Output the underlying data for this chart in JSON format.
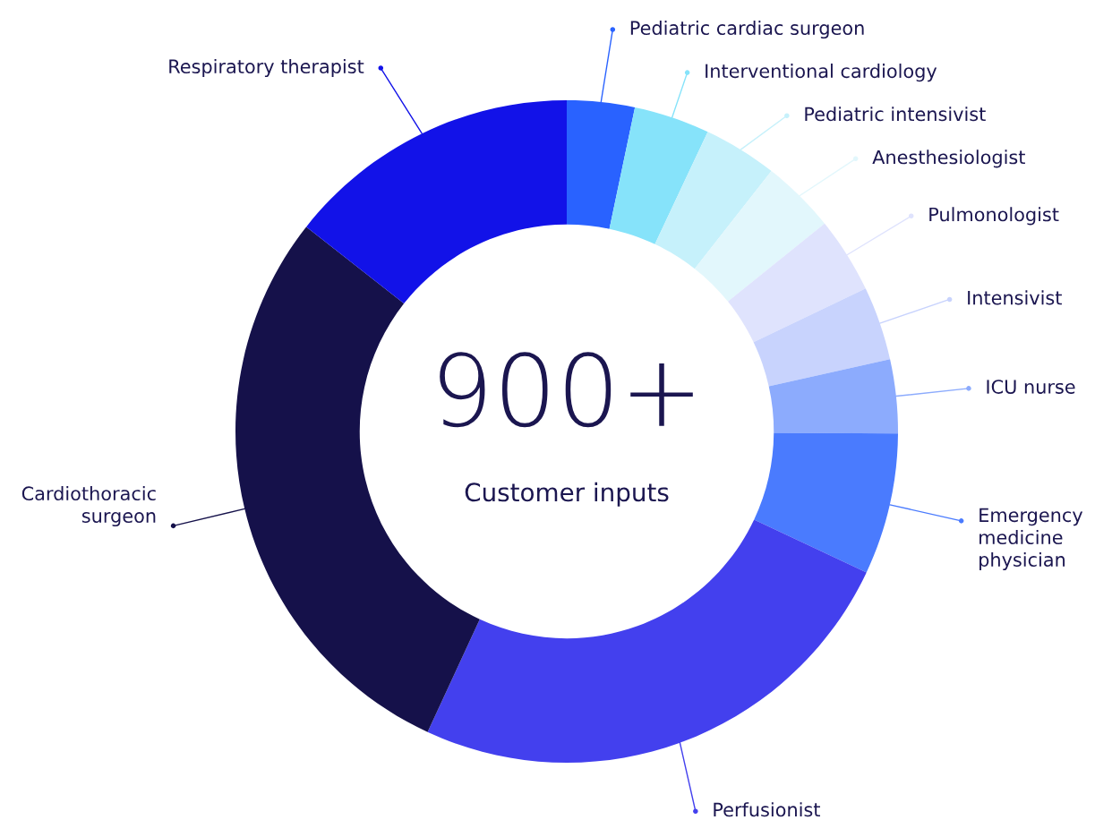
{
  "chart_data": {
    "type": "donut",
    "categories": [
      "Pediatric cardiac surgeon",
      "Interventional cardiology",
      "Pediatric intensivist",
      "Anesthesiologist",
      "Pulmonologist",
      "Intensivist",
      "ICU nurse",
      "Emergency\nmedicine\nphysician",
      "Perfusionist",
      "Cardiothoracic\nsurgeon",
      "Respiratory therapist"
    ],
    "values": [
      3.3,
      3.7,
      3.6,
      3.6,
      3.7,
      3.6,
      3.6,
      6.9,
      24.9,
      28.7,
      14.4
    ],
    "colors": [
      "#2962ff",
      "#86e3fa",
      "#c6f1fb",
      "#e2f7fc",
      "#dfe3fd",
      "#c8d3fd",
      "#8cabfd",
      "#4a7bfe",
      "#4340ee",
      "#15114a",
      "#1212e8"
    ],
    "legend": "right",
    "annotations": [
      "900+",
      "Customer inputs"
    ]
  }
}
